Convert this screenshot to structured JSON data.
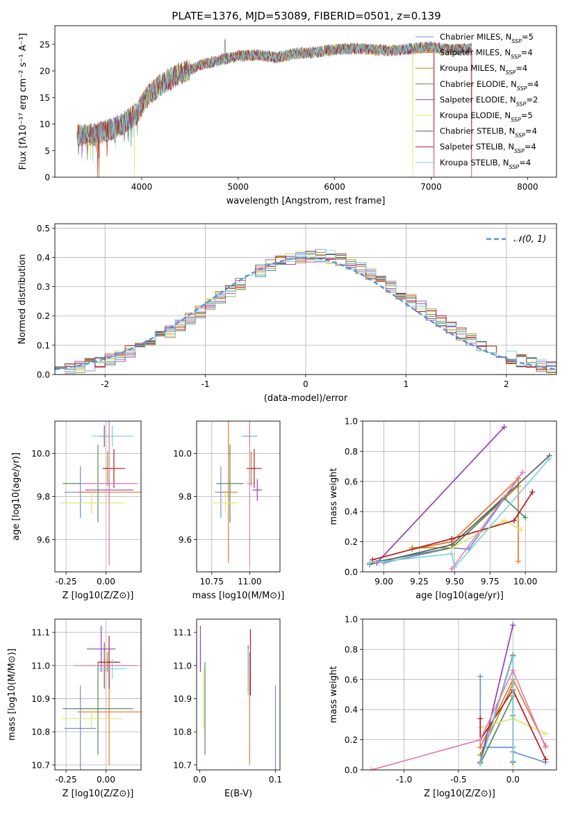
{
  "figure": {
    "title": "PLATE=1376, MJD=53089, FIBERID=0501, z=0.139"
  },
  "colors": {
    "grid": "#b0b0b0",
    "models": [
      "#6c8fd6",
      "#e8762b",
      "#b08b1f",
      "#4f8a62",
      "#9a3cb5",
      "#d9e66a",
      "#5c5c5c",
      "#b5191c",
      "#7ed0df"
    ],
    "extra_pink": "#e07fb4",
    "normal_curve": "#5b8fd8"
  },
  "chart_data": [
    {
      "id": "spectrum",
      "type": "line",
      "xlabel": "wavelength [Angstrom, rest frame]",
      "ylabel": "Flux [fλ10⁻¹⁷ erg cm⁻² s⁻¹ A⁻¹]",
      "xlim": [
        3100,
        8300
      ],
      "ylim": [
        0,
        28.5
      ],
      "xticks": [
        4000,
        5000,
        6000,
        7000,
        8000
      ],
      "yticks": [
        0,
        5,
        10,
        15,
        20,
        25
      ],
      "grid": false,
      "legend": "right",
      "x": [
        3330,
        3500,
        3650,
        3800,
        3950,
        4050,
        4200,
        4400,
        4600,
        4800,
        5000,
        5200,
        5400,
        5600,
        5800,
        6000,
        6200,
        6400,
        6600,
        6800,
        7000,
        7200,
        7420
      ],
      "y": [
        8.0,
        8.0,
        8.8,
        10.0,
        12.0,
        15.0,
        17.5,
        19.5,
        21.0,
        22.0,
        22.8,
        23.0,
        22.5,
        23.3,
        23.5,
        24.0,
        24.2,
        24.0,
        23.8,
        24.2,
        24.5,
        24.0,
        24.2
      ],
      "drops": [
        {
          "series": 7,
          "x": 3545
        },
        {
          "series": 2,
          "x": 3560
        },
        {
          "series": 5,
          "x": 3925
        },
        {
          "series": 5,
          "x": 6810
        },
        {
          "series": 7,
          "x": 7030
        },
        {
          "series": 7,
          "x": 7420
        }
      ],
      "series": [
        {
          "name": "Chabrier MILES, N",
          "sub": "SSP",
          "eq": "=5"
        },
        {
          "name": "Salpeter MILES, N",
          "sub": "SSP",
          "eq": "=4"
        },
        {
          "name": "Kroupa MILES, N",
          "sub": "SSP",
          "eq": "=4"
        },
        {
          "name": "Chabrier ELODIE, N",
          "sub": "SSP",
          "eq": "=4"
        },
        {
          "name": "Salpeter ELODIE, N",
          "sub": "SSP",
          "eq": "=2"
        },
        {
          "name": "Kroupa ELODIE, N",
          "sub": "SSP",
          "eq": "=5"
        },
        {
          "name": "Chabrier STELIB, N",
          "sub": "SSP",
          "eq": "=4"
        },
        {
          "name": "Salpeter STELIB, N",
          "sub": "SSP",
          "eq": "=4"
        },
        {
          "name": "Kroupa STELIB, N",
          "sub": "SSP",
          "eq": "=4"
        }
      ]
    },
    {
      "id": "residuals",
      "type": "line",
      "xlabel": "(data-model)/error",
      "ylabel": "Normed distribution",
      "xlim": [
        -2.5,
        2.5
      ],
      "ylim": [
        0,
        0.515
      ],
      "xticks": [
        -2,
        -1,
        0,
        1,
        2
      ],
      "yticks": [
        0.0,
        0.1,
        0.2,
        0.3,
        0.4,
        0.5
      ],
      "grid": true,
      "legend": "top-right",
      "curve_label": "𝒩(0, 1)",
      "bin_width": 0.1
    },
    {
      "id": "age_vs_Z",
      "type": "scatter",
      "xlabel": "Z [log10(Z/Z⊙)]",
      "ylabel": "age [log10(age/yr)]",
      "xlim": [
        -0.32,
        0.22
      ],
      "ylim": [
        9.45,
        10.15
      ],
      "xticks": [
        -0.25,
        0.0
      ],
      "yticks": [
        9.6,
        9.8,
        10.0
      ],
      "grid": true,
      "points": [
        {
          "c": 0,
          "x": -0.16,
          "y": 9.82,
          "xerr": 0.1,
          "yerr": 0.12
        },
        {
          "c": 1,
          "x": 0.02,
          "y": 9.82,
          "xerr": 0.2,
          "yerr": 0.33
        },
        {
          "c": 2,
          "x": 0.01,
          "y": 9.93,
          "xerr": 0.03,
          "yerr": 0.08
        },
        {
          "c": 3,
          "x": -0.05,
          "y": 9.86,
          "xerr": 0.22,
          "yerr": 0.18
        },
        {
          "c": 4,
          "x": 0.02,
          "y": 9.83,
          "xerr": 0.15,
          "yerr": 0.05
        },
        {
          "c": 5,
          "x": -0.09,
          "y": 9.77,
          "xerr": 0.2,
          "yerr": 0.05
        },
        {
          "c": 6,
          "x": -0.01,
          "y": 10.08,
          "xerr": 0.03,
          "yerr": 0.05
        },
        {
          "c": 7,
          "x": 0.05,
          "y": 9.93,
          "xerr": 0.07,
          "yerr": 0.09
        },
        {
          "c": 8,
          "x": 0.04,
          "y": 10.08,
          "xerr": 0.13,
          "yerr": 0.05
        },
        {
          "c": "pink",
          "x": 0.02,
          "y": 9.86,
          "xerr": 0.18,
          "yerr": 0.38
        }
      ]
    },
    {
      "id": "age_vs_mass",
      "type": "scatter",
      "xlabel": "mass [log10(M/M⊙)]",
      "ylabel": "",
      "xlim": [
        10.65,
        11.2
      ],
      "ylim": [
        9.45,
        10.15
      ],
      "xticks": [
        10.75,
        11.0
      ],
      "yticks": [
        9.6,
        9.8,
        10.0
      ],
      "grid": true,
      "points": [
        {
          "c": 0,
          "x": 10.81,
          "y": 9.82,
          "xerr": 0.04,
          "yerr": 0.12
        },
        {
          "c": 1,
          "x": 10.86,
          "y": 9.82,
          "xerr": 0.06,
          "yerr": 0.33
        },
        {
          "c": 2,
          "x": 11.01,
          "y": 9.93,
          "xerr": 0.03,
          "yerr": 0.08
        },
        {
          "c": 3,
          "x": 10.87,
          "y": 9.86,
          "xerr": 0.09,
          "yerr": 0.18
        },
        {
          "c": 4,
          "x": 11.05,
          "y": 9.83,
          "xerr": 0.03,
          "yerr": 0.05
        },
        {
          "c": 5,
          "x": 10.84,
          "y": 9.77,
          "xerr": 0.08,
          "yerr": 0.05
        },
        {
          "c": 6,
          "x": 11.0,
          "y": 10.08,
          "xerr": 0.05,
          "yerr": 0.05
        },
        {
          "c": 7,
          "x": 11.03,
          "y": 9.93,
          "xerr": 0.05,
          "yerr": 0.09
        },
        {
          "c": 8,
          "x": 11.0,
          "y": 10.08,
          "xerr": 0.05,
          "yerr": 0.05
        },
        {
          "c": "pink",
          "x": 11.0,
          "y": 9.86,
          "xerr": 0.02,
          "yerr": 0.38
        }
      ]
    },
    {
      "id": "weight_vs_age",
      "type": "line",
      "xlabel": "age [log10(age/yr)]",
      "ylabel": "mass weight",
      "xlim": [
        8.85,
        10.22
      ],
      "ylim": [
        0,
        1.0
      ],
      "xticks": [
        9.0,
        9.25,
        9.5,
        9.75,
        10.0
      ],
      "yticks": [
        0.0,
        0.2,
        0.4,
        0.6,
        0.8,
        1.0
      ],
      "grid": true,
      "series": [
        {
          "c": 0,
          "points": [
            [
              9.0,
              0.06
            ],
            [
              9.48,
              0.16
            ],
            [
              9.6,
              0.15
            ],
            [
              9.95,
              0.62
            ]
          ]
        },
        {
          "c": 1,
          "points": [
            [
              9.2,
              0.15
            ],
            [
              9.48,
              0.2
            ],
            [
              9.95,
              0.62
            ],
            [
              9.95,
              0.07
            ]
          ]
        },
        {
          "c": 2,
          "points": [
            [
              9.2,
              0.16
            ],
            [
              9.48,
              0.16
            ],
            [
              9.95,
              0.57
            ]
          ]
        },
        {
          "c": 3,
          "points": [
            [
              8.9,
              0.06
            ],
            [
              9.48,
              0.16
            ],
            [
              9.85,
              0.49
            ],
            [
              10.0,
              0.36
            ]
          ]
        },
        {
          "c": 4,
          "points": [
            [
              8.95,
              0.06
            ],
            [
              9.85,
              0.96
            ]
          ]
        },
        {
          "c": 5,
          "points": [
            [
              9.48,
              0.16
            ],
            [
              9.85,
              0.34
            ],
            [
              9.97,
              0.28
            ]
          ]
        },
        {
          "c": 6,
          "points": [
            [
              8.9,
              0.05
            ],
            [
              9.48,
              0.18
            ],
            [
              10.17,
              0.77
            ]
          ]
        },
        {
          "c": 7,
          "points": [
            [
              8.92,
              0.08
            ],
            [
              9.48,
              0.22
            ],
            [
              9.92,
              0.34
            ],
            [
              10.05,
              0.53
            ]
          ]
        },
        {
          "c": 8,
          "points": [
            [
              8.9,
              0.06
            ],
            [
              9.48,
              0.12
            ],
            [
              9.5,
              0.03
            ],
            [
              10.17,
              0.75
            ]
          ]
        },
        {
          "c": "pink",
          "points": [
            [
              9.48,
              0.02
            ],
            [
              9.98,
              0.66
            ]
          ]
        }
      ]
    },
    {
      "id": "mass_vs_Z",
      "type": "scatter",
      "xlabel": "Z [log10(Z/Z⊙)]",
      "ylabel": "mass [log10(M/M⊙)]",
      "xlim": [
        -0.32,
        0.22
      ],
      "ylim": [
        10.685,
        11.14
      ],
      "xticks": [
        -0.25,
        0.0
      ],
      "yticks": [
        10.7,
        10.8,
        10.9,
        11.0,
        11.1
      ],
      "grid": true,
      "points": [
        {
          "c": 0,
          "x": -0.16,
          "y": 10.81,
          "xerr": 0.1,
          "yerr": 0.13
        },
        {
          "c": 1,
          "x": 0.02,
          "y": 10.86,
          "xerr": 0.2,
          "yerr": 0.16
        },
        {
          "c": 2,
          "x": 0.01,
          "y": 11.01,
          "xerr": 0.06,
          "yerr": 0.03
        },
        {
          "c": 3,
          "x": -0.05,
          "y": 10.87,
          "xerr": 0.22,
          "yerr": 0.14
        },
        {
          "c": 4,
          "x": -0.03,
          "y": 11.05,
          "xerr": 0.09,
          "yerr": 0.07
        },
        {
          "c": 5,
          "x": -0.09,
          "y": 10.84,
          "xerr": 0.19,
          "yerr": 0.03
        },
        {
          "c": 6,
          "x": -0.01,
          "y": 11.0,
          "xerr": 0.04,
          "yerr": 0.07
        },
        {
          "c": 7,
          "x": 0.02,
          "y": 11.01,
          "xerr": 0.07,
          "yerr": 0.08
        },
        {
          "c": 8,
          "x": 0.04,
          "y": 10.99,
          "xerr": 0.09,
          "yerr": 0.03
        },
        {
          "c": "pink",
          "x": 0.0,
          "y": 11.0,
          "xerr": 0.2,
          "yerr": 0.02
        }
      ]
    },
    {
      "id": "mass_vs_ebv",
      "type": "scatter",
      "xlabel": "E(B-V)",
      "ylabel": "",
      "xlim": [
        -0.004,
        0.106
      ],
      "ylim": [
        10.685,
        11.14
      ],
      "xticks": [
        0.0,
        0.1
      ],
      "yticks": [
        10.7,
        10.8,
        10.9,
        11.0,
        11.1
      ],
      "grid": false,
      "points": [
        {
          "c": 0,
          "x": 0.1,
          "y": 10.81,
          "yerr": 0.13
        },
        {
          "c": 1,
          "x": 0.066,
          "y": 10.86,
          "yerr": 0.16
        },
        {
          "c": 2,
          "x": 0.066,
          "y": 11.01,
          "yerr": 0.03
        },
        {
          "c": 3,
          "x": 0.007,
          "y": 10.87,
          "yerr": 0.14
        },
        {
          "c": 4,
          "x": 0.001,
          "y": 11.05,
          "yerr": 0.07
        },
        {
          "c": 5,
          "x": 0.005,
          "y": 10.9,
          "yerr": 0.09
        },
        {
          "c": 6,
          "x": 0.064,
          "y": 10.99,
          "yerr": 0.07
        },
        {
          "c": 7,
          "x": 0.067,
          "y": 11.01,
          "yerr": 0.1
        },
        {
          "c": 8,
          "x": 0.064,
          "y": 10.98,
          "yerr": 0.07
        },
        {
          "c": "pink",
          "x": 0.066,
          "y": 11.0,
          "yerr": 0.03
        }
      ]
    },
    {
      "id": "weight_vs_Z",
      "type": "line",
      "xlabel": "Z [log10(Z/Z⊙)]",
      "ylabel": "mass weight",
      "xlim": [
        -1.38,
        0.4
      ],
      "ylim": [
        0,
        1.0
      ],
      "xticks": [
        -1.0,
        -0.5,
        0.0
      ],
      "yticks": [
        0.0,
        0.2,
        0.4,
        0.6,
        0.8,
        1.0
      ],
      "grid": true,
      "series": [
        {
          "c": 0,
          "points": [
            [
              -0.3,
              0.62
            ],
            [
              -0.3,
              0.15
            ],
            [
              0.0,
              0.15
            ],
            [
              0.0,
              0.12
            ],
            [
              0.3,
              0.05
            ]
          ]
        },
        {
          "c": 1,
          "points": [
            [
              -0.3,
              0.15
            ],
            [
              0.0,
              0.6
            ],
            [
              0.3,
              0.16
            ]
          ]
        },
        {
          "c": 2,
          "points": [
            [
              -0.3,
              0.1
            ],
            [
              0.0,
              0.57
            ],
            [
              0.0,
              0.05
            ]
          ]
        },
        {
          "c": 3,
          "points": [
            [
              -0.3,
              0.04
            ],
            [
              0.0,
              0.49
            ],
            [
              0.0,
              0.36
            ]
          ]
        },
        {
          "c": 4,
          "points": [
            [
              -0.3,
              0.05
            ],
            [
              0.0,
              0.96
            ]
          ]
        },
        {
          "c": 5,
          "points": [
            [
              -0.3,
              0.28
            ],
            [
              0.0,
              0.34
            ],
            [
              0.3,
              0.24
            ]
          ]
        },
        {
          "c": 6,
          "points": [
            [
              -0.3,
              0.05
            ],
            [
              0.0,
              0.76
            ],
            [
              0.0,
              0.05
            ]
          ]
        },
        {
          "c": 7,
          "points": [
            [
              -0.3,
              0.34
            ],
            [
              -0.3,
              0.2
            ],
            [
              0.0,
              0.53
            ],
            [
              0.3,
              0.07
            ]
          ]
        },
        {
          "c": 8,
          "points": [
            [
              -0.3,
              0.04
            ],
            [
              0.0,
              0.75
            ],
            [
              0.0,
              0.06
            ]
          ]
        },
        {
          "c": "pink",
          "points": [
            [
              -1.3,
              0.0
            ],
            [
              -0.3,
              0.2
            ],
            [
              0.0,
              0.66
            ],
            [
              0.3,
              0.15
            ]
          ]
        }
      ]
    }
  ]
}
